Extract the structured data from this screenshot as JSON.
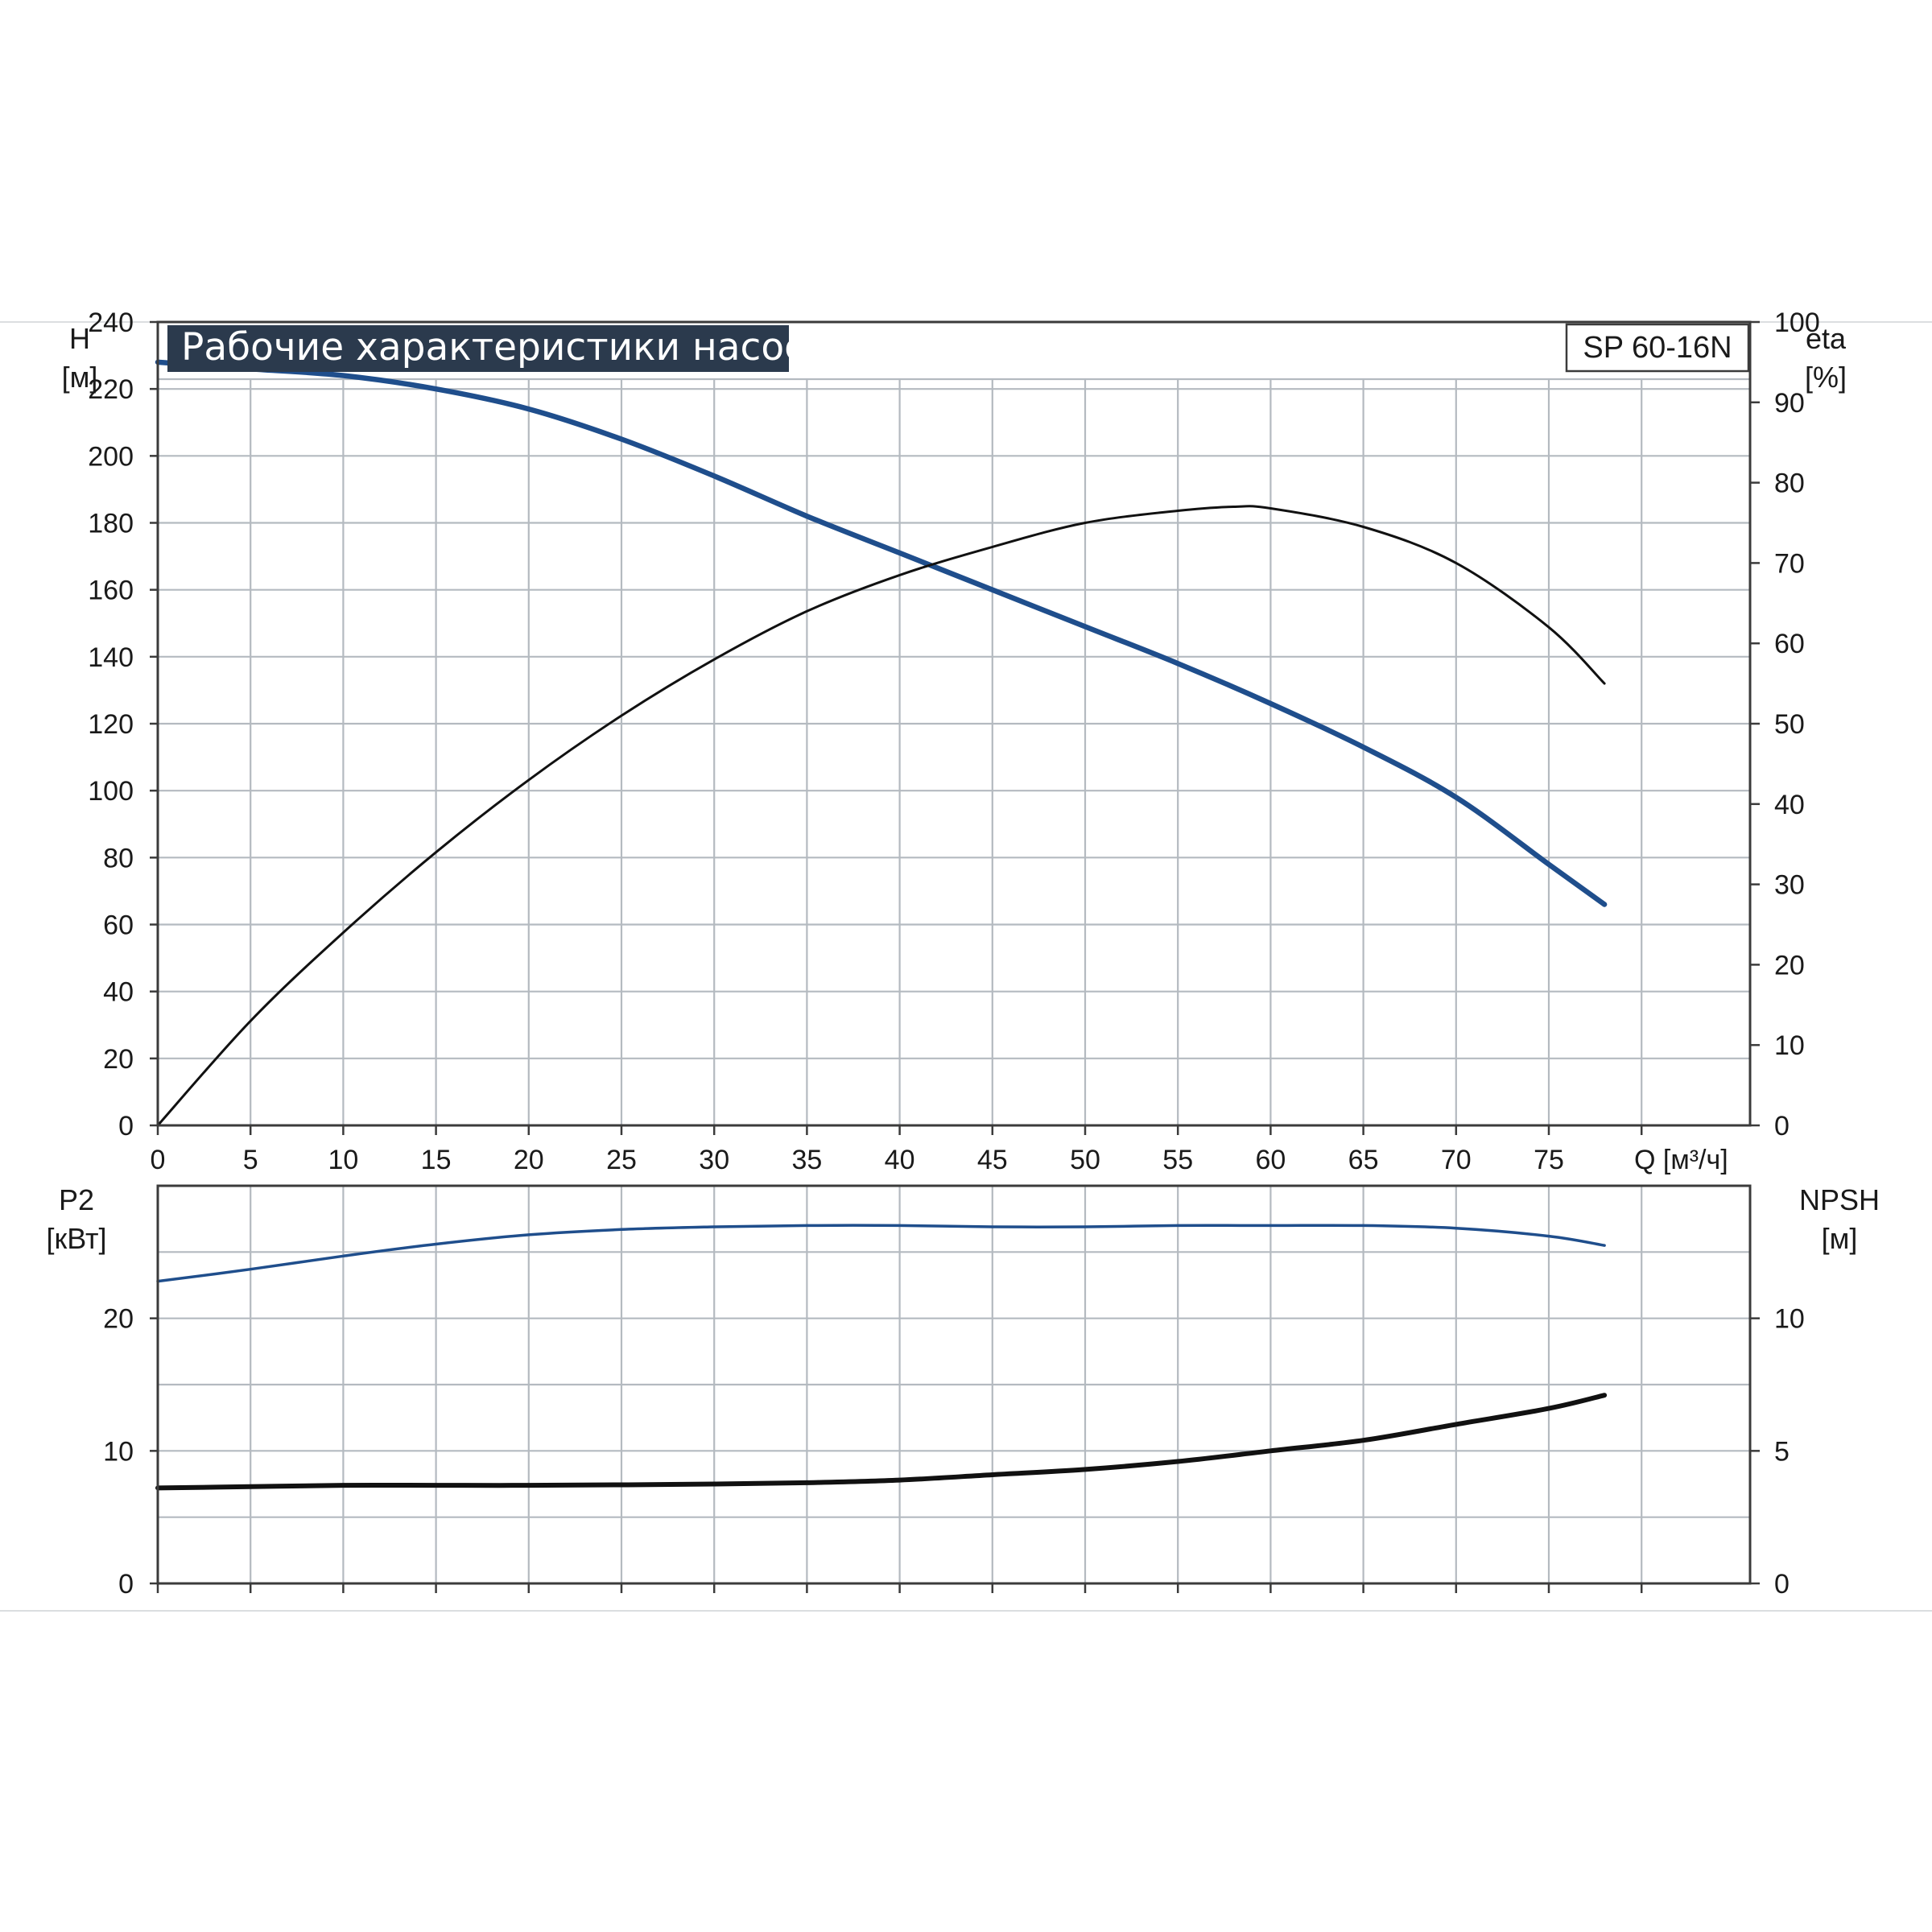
{
  "chart_data": [
    {
      "type": "line",
      "title": "Рабочие характеристики насоса",
      "model": "SP 60-16N",
      "xlabel": "Q [м³/ч]",
      "x_ticks": [
        "0",
        "5",
        "10",
        "15",
        "20",
        "25",
        "30",
        "35",
        "40",
        "45",
        "50",
        "55",
        "60",
        "65",
        "70",
        "75"
      ],
      "xlim": [
        0,
        85
      ],
      "left_axis": {
        "label": "H",
        "unit": "[м]",
        "ylim": [
          0,
          240
        ],
        "ticks": [
          "0",
          "20",
          "40",
          "60",
          "80",
          "100",
          "120",
          "140",
          "160",
          "180",
          "200",
          "220",
          "240"
        ]
      },
      "right_axis": {
        "label": "eta",
        "unit": "[%]",
        "ylim": [
          0,
          100
        ],
        "ticks": [
          "0",
          "10",
          "20",
          "30",
          "40",
          "50",
          "60",
          "70",
          "80",
          "90",
          "100"
        ]
      },
      "grid": true,
      "series": [
        {
          "axis": "left",
          "color": "#1f4e8c",
          "points": [
            [
              0,
              228
            ],
            [
              5,
              226
            ],
            [
              10,
              224
            ],
            [
              15,
              220
            ],
            [
              20,
              214
            ],
            [
              25,
              205
            ],
            [
              30,
              194
            ],
            [
              35,
              182
            ],
            [
              40,
              171
            ],
            [
              45,
              160
            ],
            [
              50,
              149
            ],
            [
              55,
              138
            ],
            [
              60,
              126
            ],
            [
              65,
              113
            ],
            [
              70,
              98
            ],
            [
              75,
              78
            ],
            [
              78,
              66
            ]
          ]
        },
        {
          "axis": "right",
          "color": "#111111",
          "points": [
            [
              0,
              0
            ],
            [
              5,
              13
            ],
            [
              10,
              24
            ],
            [
              15,
              34
            ],
            [
              20,
              43
            ],
            [
              25,
              51
            ],
            [
              30,
              58
            ],
            [
              35,
              64
            ],
            [
              40,
              68.5
            ],
            [
              45,
              72
            ],
            [
              50,
              75
            ],
            [
              55,
              76.5
            ],
            [
              58,
              77
            ],
            [
              60,
              76.8
            ],
            [
              65,
              74.5
            ],
            [
              70,
              70
            ],
            [
              75,
              62
            ],
            [
              78,
              55
            ]
          ]
        }
      ]
    },
    {
      "type": "line",
      "xlim": [
        0,
        85
      ],
      "left_axis": {
        "label": "P2",
        "unit": "[кВт]",
        "ylim": [
          0,
          30
        ],
        "ticks": [
          "0",
          "10",
          "20"
        ]
      },
      "right_axis": {
        "label": "NPSH",
        "unit": "[м]",
        "ylim": [
          0,
          15
        ],
        "ticks": [
          "0",
          "5",
          "10"
        ]
      },
      "grid": true,
      "series": [
        {
          "axis": "left",
          "color": "#1f4e8c",
          "points": [
            [
              0,
              22.8
            ],
            [
              5,
              23.7
            ],
            [
              10,
              24.7
            ],
            [
              15,
              25.6
            ],
            [
              20,
              26.3
            ],
            [
              25,
              26.7
            ],
            [
              30,
              26.9
            ],
            [
              35,
              27.0
            ],
            [
              40,
              27.0
            ],
            [
              45,
              26.9
            ],
            [
              50,
              26.9
            ],
            [
              55,
              27.0
            ],
            [
              60,
              27.0
            ],
            [
              65,
              27.0
            ],
            [
              70,
              26.8
            ],
            [
              75,
              26.2
            ],
            [
              78,
              25.5
            ]
          ]
        },
        {
          "axis": "right",
          "color": "#111111",
          "points": [
            [
              0,
              3.6
            ],
            [
              5,
              3.65
            ],
            [
              10,
              3.7
            ],
            [
              15,
              3.7
            ],
            [
              20,
              3.7
            ],
            [
              25,
              3.72
            ],
            [
              30,
              3.75
            ],
            [
              35,
              3.8
            ],
            [
              40,
              3.9
            ],
            [
              45,
              4.1
            ],
            [
              50,
              4.3
            ],
            [
              55,
              4.6
            ],
            [
              60,
              5.0
            ],
            [
              65,
              5.4
            ],
            [
              70,
              6.0
            ],
            [
              75,
              6.6
            ],
            [
              78,
              7.1
            ]
          ]
        }
      ]
    }
  ]
}
